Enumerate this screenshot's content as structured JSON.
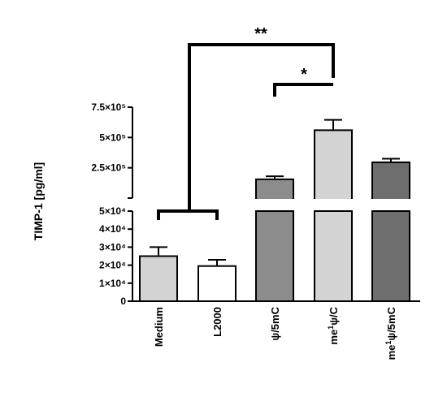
{
  "chart_data": {
    "type": "bar",
    "title": "",
    "xlabel": "",
    "ylabel": "TIMP-1 [pg/ml]",
    "axis_break": true,
    "y_lower_segment": {
      "ylim": [
        0,
        50000
      ],
      "ticks": [
        {
          "value": 0,
          "label": "0"
        },
        {
          "value": 10000,
          "label": "1×10⁴"
        },
        {
          "value": 20000,
          "label": "2×10⁴"
        },
        {
          "value": 30000,
          "label": "3×10⁴"
        },
        {
          "value": 40000,
          "label": "4×10⁴"
        },
        {
          "value": 50000,
          "label": "5×10⁴"
        }
      ]
    },
    "y_upper_segment": {
      "ylim": [
        0,
        750000
      ],
      "ticks": [
        {
          "value": 250000,
          "label": "2.5×10⁵"
        },
        {
          "value": 500000,
          "label": "5×10⁵"
        },
        {
          "value": 750000,
          "label": "7.5×10⁵"
        }
      ]
    },
    "categories": [
      {
        "label": "Medium",
        "main": "Medium",
        "sup": "",
        "tail": ""
      },
      {
        "label": "L2000",
        "main": "L2000",
        "sup": "",
        "tail": ""
      },
      {
        "label": "ψ/5mC",
        "main": "ψ/5mC",
        "sup": "",
        "tail": ""
      },
      {
        "label": "me¹ψ/C",
        "main": "me",
        "sup": "1",
        "tail": "ψ/C"
      },
      {
        "label": "me¹ψ/5mC",
        "main": "me",
        "sup": "1",
        "tail": "ψ/5mC"
      }
    ],
    "values": [
      25000,
      19500,
      155000,
      560000,
      295000
    ],
    "errors": [
      5000,
      3500,
      25000,
      85000,
      30000
    ],
    "bar_colors": [
      "#d3d3d3",
      "#ffffff",
      "#8c8c8c",
      "#d3d3d3",
      "#6e6e6e"
    ],
    "significance": [
      {
        "label": "**",
        "from": "Medium + L2000",
        "to": "me¹ψ/C"
      },
      {
        "label": "*",
        "from": "ψ/5mC",
        "to": "me¹ψ/C"
      }
    ]
  }
}
